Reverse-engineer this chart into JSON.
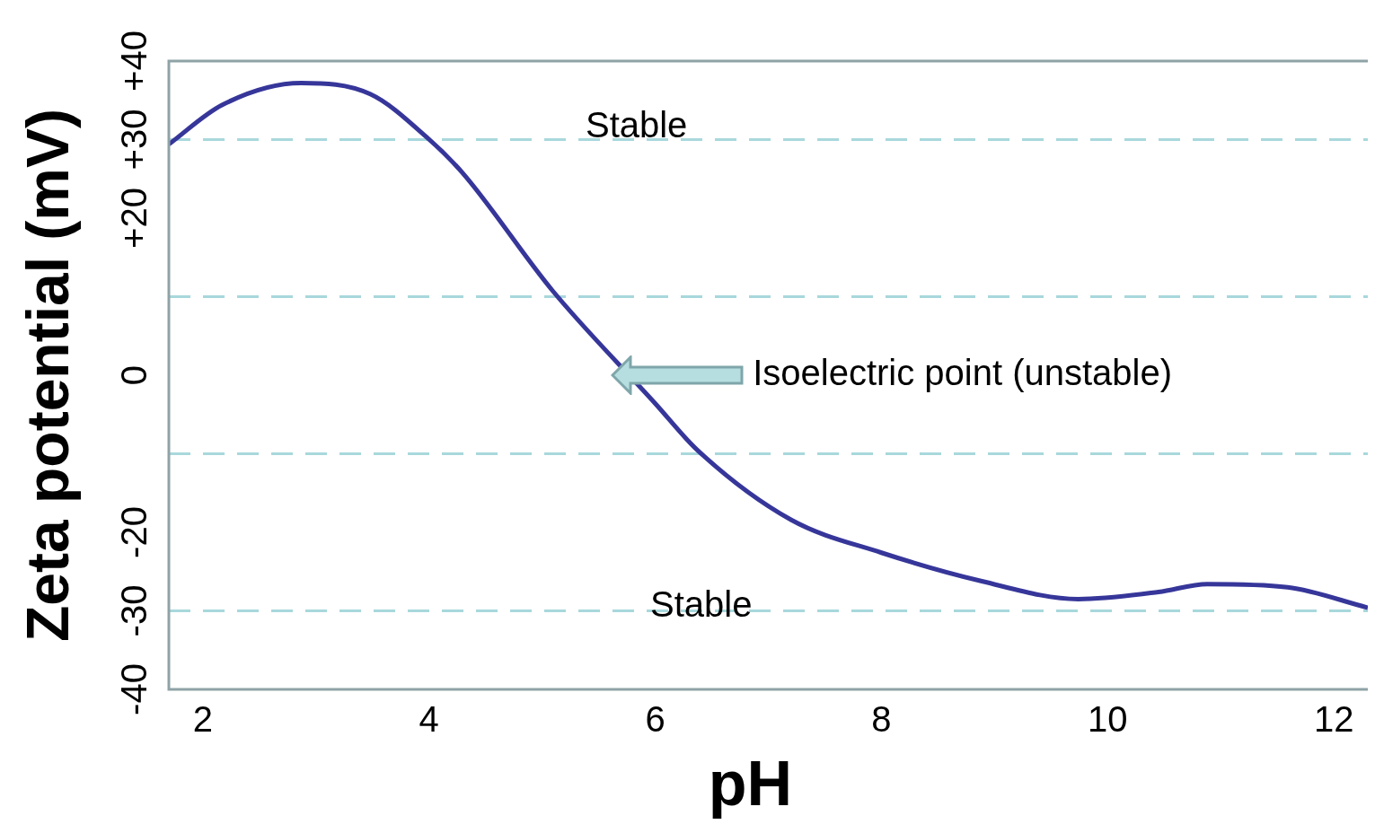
{
  "chart_data": {
    "type": "line",
    "xlabel": "pH",
    "ylabel": "Zeta potential (mV)",
    "xlim": [
      1.7,
      12.3
    ],
    "xticks": [
      2,
      4,
      6,
      8,
      10,
      12
    ],
    "ylim": [
      -40,
      40
    ],
    "yticks": [
      {
        "value": 40,
        "label": "+40"
      },
      {
        "value": 30,
        "label": "+30"
      },
      {
        "value": 20,
        "label": "+20"
      },
      0,
      -20,
      -30,
      -40
    ],
    "grid": false,
    "legend": false,
    "marker": "none",
    "line_style": "solid",
    "series": [
      {
        "color": "#36369a",
        "x": [
          1.7,
          2.17,
          2.87,
          3.48,
          3.98,
          4.3,
          5.09,
          6,
          6.37,
          7.2,
          8,
          8.88,
          9.74,
          10.45,
          10.88,
          11.59,
          12.3
        ],
        "values": [
          29.4,
          34.4,
          37.2,
          35.8,
          30.3,
          25.7,
          10.8,
          -3.6,
          -9.5,
          -18.4,
          -22.6,
          -26.2,
          -28.5,
          -27.6,
          -26.6,
          -27,
          -29.6
        ]
      }
    ],
    "ref_lines": [
      {
        "axis": "y",
        "value": 30,
        "color": "#a8d8dc",
        "line_style": "dashed"
      },
      {
        "axis": "y",
        "value": 10,
        "color": "#a8d8dc",
        "line_style": "dashed"
      },
      {
        "axis": "y",
        "value": -10,
        "color": "#a8d8dc",
        "line_style": "dashed"
      },
      {
        "axis": "y",
        "value": -30,
        "color": "#a8d8dc",
        "line_style": "dashed"
      }
    ],
    "annotations": [
      "Stable",
      "Stable",
      "Isoelectric point (unstable)"
    ]
  }
}
